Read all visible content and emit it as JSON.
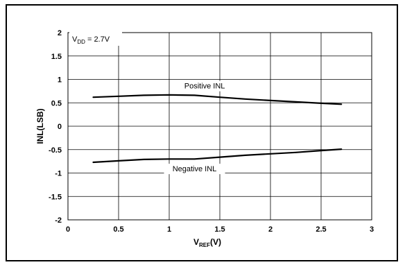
{
  "chart_data": {
    "type": "line",
    "xlabel": {
      "main": "V",
      "sub": "REF",
      "rest": "(V)"
    },
    "ylabel": "INL(LSB)",
    "xlim": [
      0,
      3
    ],
    "ylim": [
      -2,
      2
    ],
    "x_ticks": [
      "0",
      "0.5",
      "1",
      "1.5",
      "2",
      "2.5",
      "3"
    ],
    "y_ticks": [
      "2",
      "1.5",
      "1",
      "0.5",
      "0",
      "-0.5",
      "-1",
      "-1.5",
      "-2"
    ],
    "grid": true,
    "annotation_vdd": {
      "main": "V",
      "sub": "DD",
      "rest": " = 2.7V"
    },
    "series": [
      {
        "name": "Positive INL",
        "x": [
          0.25,
          0.5,
          0.75,
          1.0,
          1.25,
          1.5,
          1.75,
          2.0,
          2.25,
          2.5,
          2.7
        ],
        "y": [
          0.62,
          0.64,
          0.66,
          0.67,
          0.66,
          0.62,
          0.58,
          0.55,
          0.52,
          0.49,
          0.47
        ]
      },
      {
        "name": "Negative INL",
        "x": [
          0.25,
          0.5,
          0.75,
          1.0,
          1.25,
          1.5,
          1.75,
          2.0,
          2.25,
          2.5,
          2.7
        ],
        "y": [
          -0.77,
          -0.74,
          -0.71,
          -0.7,
          -0.7,
          -0.66,
          -0.62,
          -0.59,
          -0.56,
          -0.52,
          -0.49
        ]
      }
    ]
  }
}
